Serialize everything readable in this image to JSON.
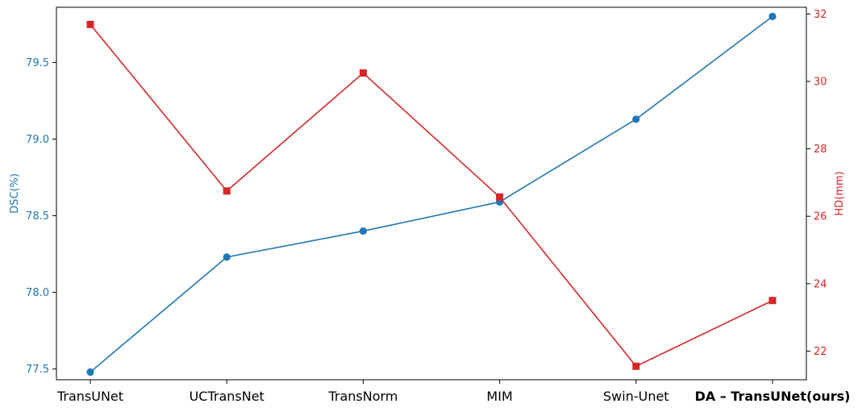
{
  "chart_data": {
    "type": "line",
    "categories": [
      "TransUNet",
      "UCTransNet",
      "TransNorm",
      "MIM",
      "Swin-Unet",
      "DA – TransUNet(ours)"
    ],
    "highlight_category_index": 5,
    "series": [
      {
        "name": "DSC(%)",
        "axis": "left",
        "color": "#1f77b4",
        "marker": "circle",
        "values": [
          77.48,
          78.23,
          78.4,
          78.59,
          79.13,
          79.8
        ]
      },
      {
        "name": "HD(mm)",
        "axis": "right",
        "color": "#d62728",
        "marker": "square",
        "values": [
          31.69,
          26.75,
          30.25,
          26.57,
          21.55,
          23.5
        ]
      }
    ],
    "ylabel": "DSC(%)",
    "y2label": "HD(mm)",
    "ylim": [
      77.43,
      79.86
    ],
    "y2lim": [
      21.15,
      32.2
    ],
    "yticks": [
      77.5,
      78.0,
      78.5,
      79.0,
      79.5
    ],
    "y2ticks": [
      22,
      24,
      26,
      28,
      30,
      32
    ],
    "grid": false
  }
}
